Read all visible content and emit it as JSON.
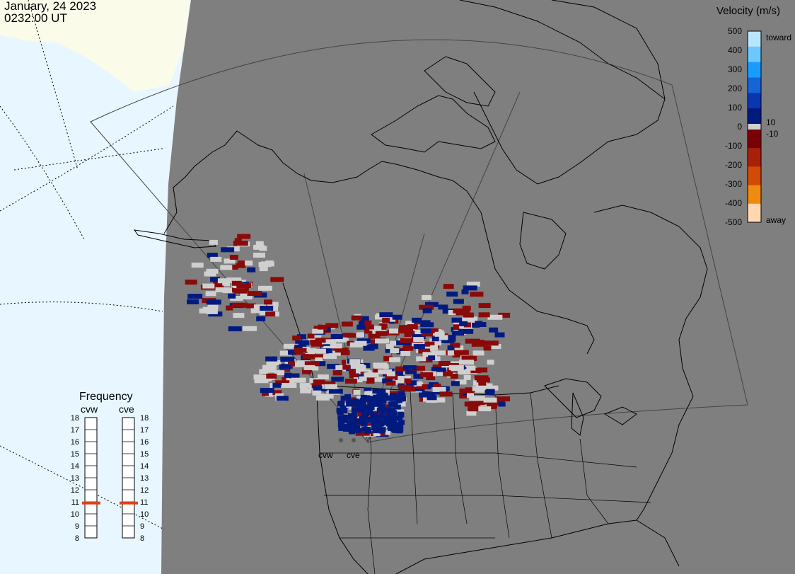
{
  "header": {
    "date": "January, 24 2023",
    "time": "0232:00 UT"
  },
  "legend": {
    "title": "Velocity (m/s)",
    "ticks": [
      "500",
      "400",
      "300",
      "200",
      "100",
      "0",
      "-100",
      "-200",
      "-300",
      "-400",
      "-500"
    ],
    "label_toward": "toward",
    "label_away": "away",
    "label_pos_thresh": "10",
    "label_neg_thresh": "-10",
    "colors": [
      "#b9e6ff",
      "#6cc9ff",
      "#1a9cff",
      "#1565d8",
      "#0a36b0",
      "#001a7d",
      "#7a0008",
      "#a8200a",
      "#d24a06",
      "#f08a10",
      "#ffd7b0"
    ]
  },
  "frequency_panel": {
    "title": "Frequency",
    "radars": [
      "cvw",
      "cve"
    ],
    "scale": [
      "18",
      "17",
      "16",
      "15",
      "14",
      "13",
      "12",
      "11",
      "10",
      "9",
      "8"
    ],
    "cvw_freq_mhz": 10.9,
    "cve_freq_mhz": 10.9,
    "marker_color": "#e0401a"
  },
  "map": {
    "radar_labels": [
      "cvw",
      "cve"
    ],
    "colors": {
      "ocean": "#e8f6ff",
      "land_daylight": "#fbfbea",
      "night": "#7f7f7f",
      "ground_scatter": "#cfcfcf",
      "coast": "#000000"
    }
  }
}
